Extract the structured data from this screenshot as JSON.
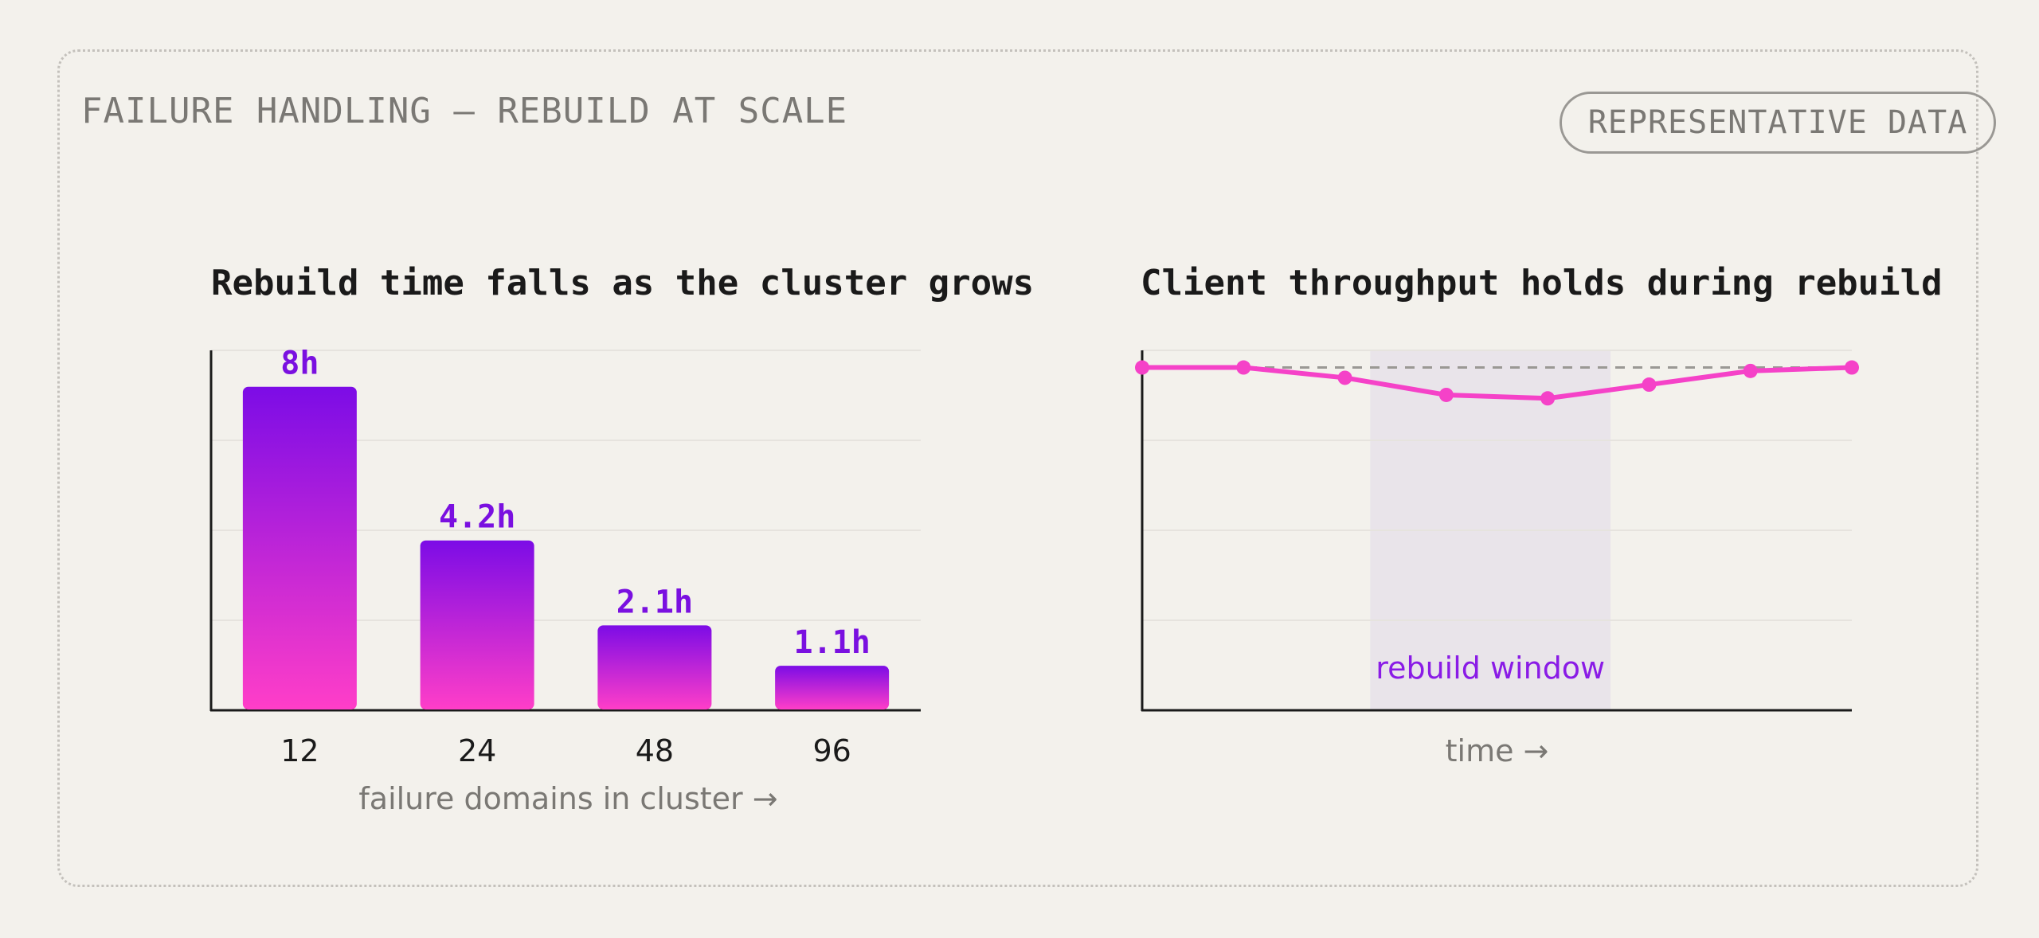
{
  "header": {
    "section_title": "FAILURE HANDLING — REBUILD AT SCALE",
    "badge": "REPRESENTATIVE DATA"
  },
  "colors": {
    "bar_top": "#7c0ce6",
    "bar_bottom": "#ff3ec8",
    "value_label": "#7a10e0",
    "line": "#f542c8",
    "baseline_dash": "#9a9894",
    "window_fill": "#e9e4ea",
    "window_label": "#8a1be6",
    "axis": "#1a1a1a",
    "grid": "#e6e3de",
    "muted_text": "#7a7874"
  },
  "chart_data": [
    {
      "type": "bar",
      "title": "Rebuild time falls as the cluster grows",
      "categories": [
        "12",
        "24",
        "48",
        "96"
      ],
      "values": [
        8,
        4.2,
        2.1,
        1.1
      ],
      "value_labels": [
        "8h",
        "4.2h",
        "2.1h",
        "1.1h"
      ],
      "unit": "h",
      "xlabel": "failure domains in cluster →",
      "ylabel": "",
      "ylim": [
        0,
        8.9
      ],
      "grid": true,
      "legend": "none"
    },
    {
      "type": "line",
      "title": "Client throughput holds during rebuild",
      "x": [
        0,
        1,
        2,
        3,
        4,
        5,
        6,
        7
      ],
      "values": [
        100,
        100,
        97,
        92,
        91,
        95,
        99,
        100
      ],
      "baseline": 100,
      "ylim": [
        0,
        105
      ],
      "shaded_window": {
        "x_range": [
          2.25,
          4.62
        ],
        "label": "rebuild window"
      },
      "xlabel": "time →",
      "ylabel": "",
      "grid": true,
      "legend": "none"
    }
  ]
}
